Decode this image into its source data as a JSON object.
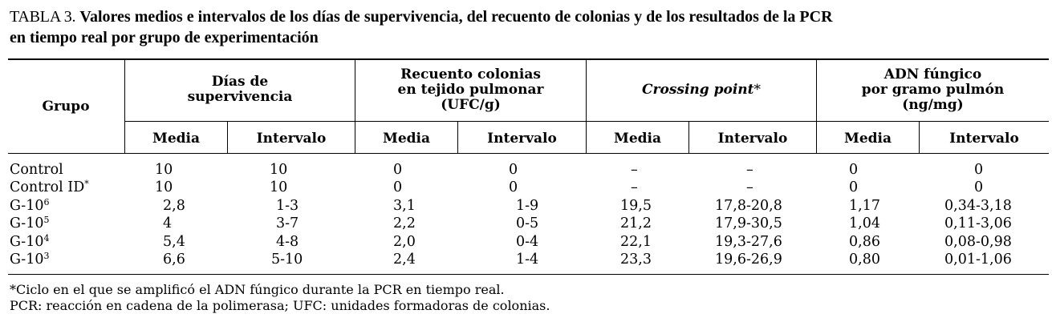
{
  "caption": {
    "label": "TABLA 3.",
    "title_line1": "Valores medios e intervalos de los días de supervivencia, del recuento de colonias y de los resultados de la PCR",
    "title_line2": "en tiempo real por grupo de experimentación"
  },
  "header": {
    "grupo": "Grupo",
    "dias_line1": "Días de",
    "dias_line2": "supervivencia",
    "recuento_line1": "Recuento colonias",
    "recuento_line2": "en tejido pulmonar",
    "recuento_line3": "(UFC/g)",
    "crossing": "Crossing point",
    "crossing_star": "*",
    "adn_line1": "ADN fúngico",
    "adn_line2": "por gramo pulmón",
    "adn_line3": "(ng/mg)",
    "media": "Media",
    "intervalo": "Intervalo"
  },
  "rows": [
    {
      "grupo": "Control",
      "sup": "",
      "dias_media": "10",
      "dias_intervalo": "10",
      "rec_media": "0",
      "rec_intervalo": "0",
      "cp_media": "–",
      "cp_intervalo": "–",
      "adn_media": "0",
      "adn_intervalo": "0"
    },
    {
      "grupo": "Control ID",
      "sup": "*",
      "dias_media": "10",
      "dias_intervalo": "10",
      "rec_media": "0",
      "rec_intervalo": "0",
      "cp_media": "–",
      "cp_intervalo": "–",
      "adn_media": "0",
      "adn_intervalo": "0"
    },
    {
      "grupo": "G-10",
      "sup": "6",
      "dias_media": "2,8",
      "dias_intervalo": "1-3",
      "rec_media": "3,1",
      "rec_intervalo": "1-9",
      "cp_media": "19,5",
      "cp_intervalo": "17,8-20,8",
      "adn_media": "1,17",
      "adn_intervalo": "0,34-3,18"
    },
    {
      "grupo": "G-10",
      "sup": "5",
      "dias_media": "4",
      "dias_intervalo": "3-7",
      "rec_media": "2,2",
      "rec_intervalo": "0-5",
      "cp_media": "21,2",
      "cp_intervalo": "17,9-30,5",
      "adn_media": "1,04",
      "adn_intervalo": "0,11-3,06"
    },
    {
      "grupo": "G-10",
      "sup": "4",
      "dias_media": "5,4",
      "dias_intervalo": "4-8",
      "rec_media": "2,0",
      "rec_intervalo": "0-4",
      "cp_media": "22,1",
      "cp_intervalo": "19,3-27,6",
      "adn_media": "0,86",
      "adn_intervalo": "0,08-0,98"
    },
    {
      "grupo": "G-10",
      "sup": "3",
      "dias_media": "6,6",
      "dias_intervalo": "5-10",
      "rec_media": "2,4",
      "rec_intervalo": "1-4",
      "cp_media": "23,3",
      "cp_intervalo": "19,6-26,9",
      "adn_media": "0,80",
      "adn_intervalo": "0,01-1,06"
    }
  ],
  "notes": {
    "note1": "*Ciclo en el que se amplificó el ADN fúngico durante la PCR en tiempo real.",
    "note2": "PCR: reacción en cadena de la polimerasa; UFC: unidades formadoras de colonias."
  }
}
